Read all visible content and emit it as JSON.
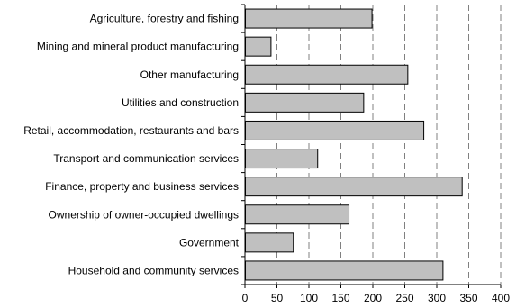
{
  "chart_data": {
    "type": "bar",
    "orientation": "horizontal",
    "title": "",
    "xlabel": "",
    "ylabel": "",
    "categories": [
      "Agriculture, forestry and fishing",
      "Mining and mineral product manufacturing",
      "Other manufacturing",
      "Utilities and construction",
      "Retail, accommodation, restaurants and bars",
      "Transport and communication services",
      "Finance, property and business services",
      "Ownership of owner-occupied dwellings",
      "Government",
      "Household and community services"
    ],
    "values": [
      198,
      40,
      254,
      185,
      279,
      113,
      339,
      162,
      75,
      309
    ],
    "xlim": [
      0,
      400
    ],
    "xticks": [
      "0",
      "50",
      "100",
      "150",
      "200",
      "250",
      "300",
      "350",
      "400"
    ],
    "grid": "vertical dashed",
    "legend": "none",
    "colors": {
      "bar_fill": "#c0c0c0",
      "bar_stroke": "#000000",
      "grid": "#808080",
      "axis": "#000000"
    }
  }
}
